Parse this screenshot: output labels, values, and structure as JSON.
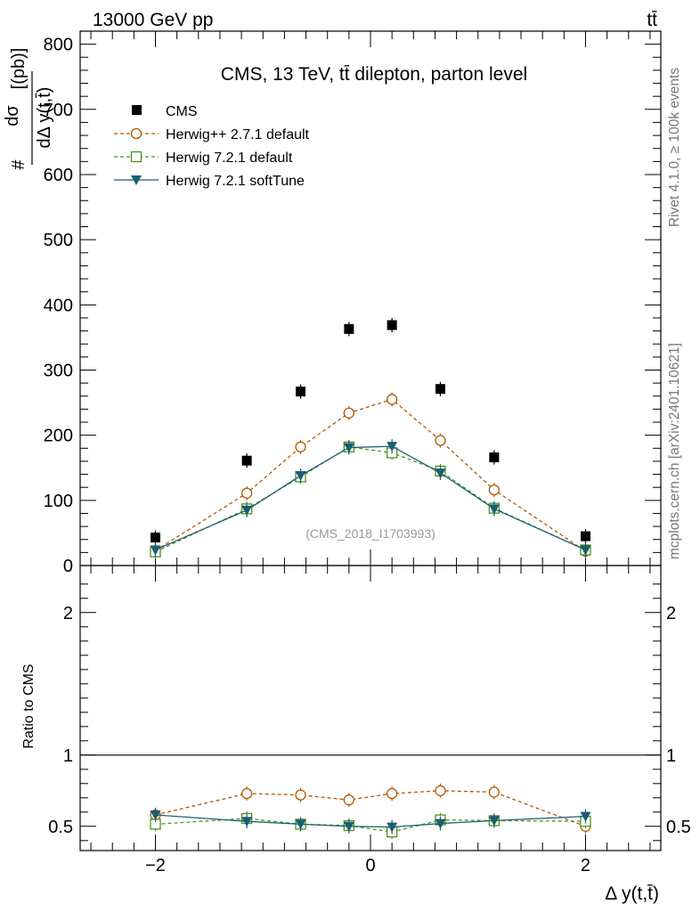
{
  "header": {
    "energy_label": "13000 GeV pp",
    "process_label": "tt̄",
    "side_label_top": "Rivet 4.1.0, ≥ 100k events",
    "side_label_bottom": "mcplots.cern.ch [arXiv:2401.10621]"
  },
  "colors": {
    "cms": "#000000",
    "herwigpp": "#b35806",
    "herwig721": "#4d9221",
    "softtune": "#1b5e70"
  },
  "chart_data": [
    {
      "type": "scatter",
      "title": "CMS, 13 TeV, tt̄ dilepton, parton level",
      "watermark": "(CMS_2018_I1703993)",
      "ylabel": "#  dσ / dΔ y(t,t̄)  [(pb)]",
      "ylabel_num": "dσ",
      "ylabel_den": "dΔ y(t,t̄)",
      "ylabel_prefix": "#",
      "ylabel_unit": "[(pb)]",
      "xlabel": "",
      "xlim": [
        -2.7,
        2.7
      ],
      "ylim": [
        0,
        820
      ],
      "x_ticks": [
        -2,
        0,
        2
      ],
      "y_ticks": [
        0,
        100,
        200,
        300,
        400,
        500,
        600,
        700,
        800
      ],
      "y_tick_labels": [
        "0",
        "100",
        "200",
        "300",
        "400",
        "500",
        "600",
        "700",
        "800"
      ],
      "legend_position": "top-left",
      "x": [
        -2.0,
        -1.15,
        -0.65,
        -0.2,
        0.2,
        0.65,
        1.15,
        2.0
      ],
      "series": [
        {
          "name": "CMS",
          "style": "marker",
          "color": "#000000",
          "marker": "square-filled",
          "values": [
            43,
            161,
            267,
            363,
            369,
            271,
            166,
            45
          ]
        },
        {
          "name": "Herwig++ 2.7.1 default",
          "style": "dashed",
          "color": "#b35806",
          "marker": "circle-open",
          "values": [
            23,
            111,
            182,
            234,
            255,
            192,
            116,
            22
          ]
        },
        {
          "name": "Herwig 7.2.1 default",
          "style": "dashed",
          "color": "#4d9221",
          "marker": "square-open",
          "values": [
            21,
            87,
            136,
            182,
            173,
            145,
            88,
            24
          ]
        },
        {
          "name": "Herwig 7.2.1 softTune",
          "style": "solid",
          "color": "#1b5e70",
          "marker": "triangle-down-filled",
          "values": [
            24,
            85,
            138,
            181,
            183,
            142,
            87,
            24
          ]
        }
      ]
    },
    {
      "type": "line",
      "title": "",
      "ylabel": "Ratio to CMS",
      "xlabel": "Δ y(t,t̄)",
      "xlim": [
        -2.7,
        2.7
      ],
      "ylim": [
        0.33,
        2.33
      ],
      "x_ticks": [
        -2,
        0,
        2
      ],
      "x_tick_labels": [
        "−2",
        "0",
        "2"
      ],
      "y_ticks": [
        0.5,
        1,
        2
      ],
      "y_tick_labels": [
        "0.5",
        "1",
        "2"
      ],
      "reference_line": 1,
      "x": [
        -2.0,
        -1.15,
        -0.65,
        -0.2,
        0.2,
        0.65,
        1.15,
        2.0
      ],
      "series": [
        {
          "name": "Herwig++ 2.7.1 default",
          "style": "dashed",
          "color": "#b35806",
          "marker": "circle-open",
          "values": [
            0.58,
            0.73,
            0.72,
            0.685,
            0.73,
            0.75,
            0.74,
            0.5
          ]
        },
        {
          "name": "Herwig 7.2.1 default",
          "style": "dashed",
          "color": "#4d9221",
          "marker": "square-open",
          "values": [
            0.515,
            0.555,
            0.515,
            0.505,
            0.46,
            0.545,
            0.54,
            0.535
          ]
        },
        {
          "name": "Herwig 7.2.1 softTune",
          "style": "solid",
          "color": "#1b5e70",
          "marker": "triangle-down-filled",
          "values": [
            0.58,
            0.535,
            0.515,
            0.5,
            0.495,
            0.52,
            0.54,
            0.57
          ]
        }
      ]
    }
  ]
}
